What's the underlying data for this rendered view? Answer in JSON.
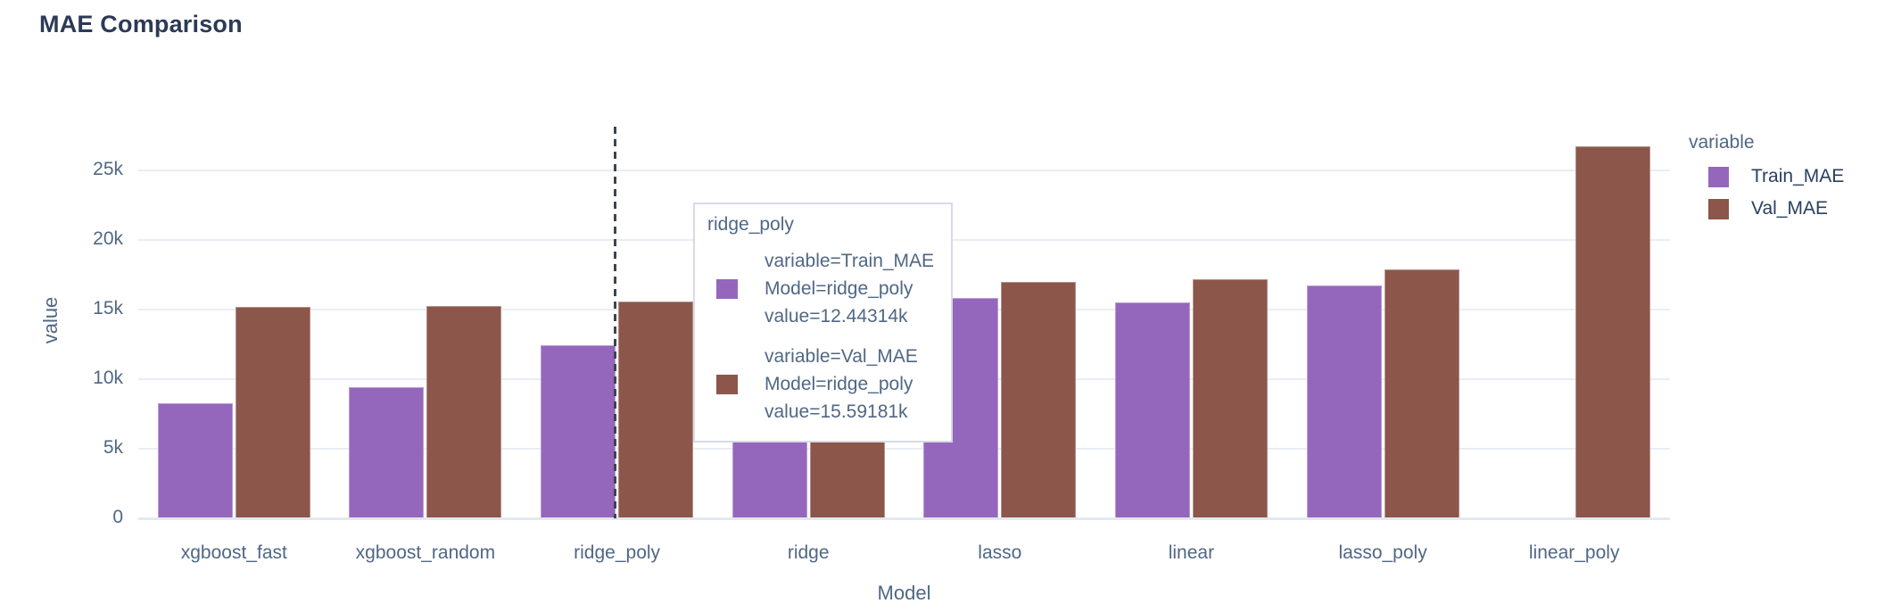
{
  "title": "MAE Comparison",
  "chart_data": {
    "type": "bar",
    "title": "MAE Comparison",
    "xlabel": "Model",
    "ylabel": "value",
    "legend_title": "variable",
    "legend_position": "right",
    "grid": "horizontal",
    "ylim": [
      0,
      28270
    ],
    "yticks": [
      {
        "value": 0,
        "label": "0"
      },
      {
        "value": 5000,
        "label": "5k"
      },
      {
        "value": 10000,
        "label": "10k"
      },
      {
        "value": 15000,
        "label": "15k"
      },
      {
        "value": 20000,
        "label": "20k"
      },
      {
        "value": 25000,
        "label": "25k"
      }
    ],
    "categories": [
      "xgboost_fast",
      "xgboost_random",
      "ridge_poly",
      "ridge",
      "lasso",
      "linear",
      "lasso_poly",
      "linear_poly"
    ],
    "series": [
      {
        "name": "Train_MAE",
        "color": "#9467bd",
        "values": [
          8290,
          9430,
          12443.14,
          15600,
          15830,
          15490,
          16730,
          60
        ]
      },
      {
        "name": "Val_MAE",
        "color": "#8c564b",
        "values": [
          15170,
          15240,
          15591.81,
          17100,
          17010,
          17160,
          17860,
          26710
        ]
      }
    ]
  },
  "hover_tooltip": {
    "header": "ridge_poly",
    "highlighted_category": "ridge_poly",
    "entries": [
      {
        "series": "Train_MAE",
        "swatch_color": "#9467bd",
        "lines": [
          "variable=Train_MAE",
          "Model=ridge_poly",
          "value=12.44314k"
        ]
      },
      {
        "series": "Val_MAE",
        "swatch_color": "#8c564b",
        "lines": [
          "variable=Val_MAE",
          "Model=ridge_poly",
          "value=15.59181k"
        ]
      }
    ]
  },
  "legend": {
    "title": "variable",
    "items": [
      {
        "label": "Train_MAE",
        "color": "#9467bd"
      },
      {
        "label": "Val_MAE",
        "color": "#8c564b"
      }
    ]
  },
  "colors": {
    "train_series": "#9467bd",
    "val_series": "#8c564b",
    "grid_line": "#e9edf5",
    "axis_line": "#e3e8f0",
    "tick_text": "#506784",
    "axis_title_text": "#506784",
    "title_text": "#2c3a56",
    "legend_title_text": "#506784",
    "legend_item_text": "#2a3f5f",
    "tooltip_text": "#506784",
    "tooltip_border": "#d7dbe8",
    "spike_line": "#3f444c",
    "background": "#ffffff"
  }
}
